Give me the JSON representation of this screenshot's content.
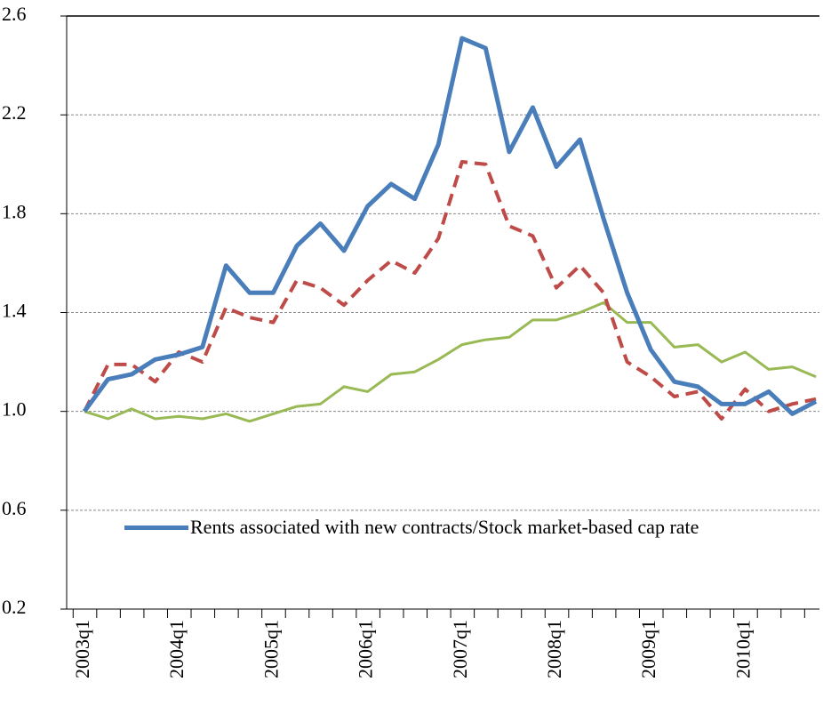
{
  "chart_data": {
    "type": "line",
    "categories": [
      "2003q1",
      null,
      null,
      null,
      "2004q1",
      null,
      null,
      null,
      "2005q1",
      null,
      null,
      null,
      "2006q1",
      null,
      null,
      null,
      "2007q1",
      null,
      null,
      null,
      "2008q1",
      null,
      null,
      null,
      "2009q1",
      null,
      null,
      null,
      "2010q1",
      null,
      null,
      null
    ],
    "series": [
      {
        "name": "Rents associated with new contracts/Stock market-based cap rate",
        "color": "#4a7ebb",
        "dash": false,
        "width": 5,
        "values": [
          1.0,
          1.13,
          1.15,
          1.21,
          1.23,
          1.26,
          1.59,
          1.48,
          1.48,
          1.67,
          1.76,
          1.65,
          1.83,
          1.92,
          1.86,
          2.08,
          2.51,
          2.47,
          2.05,
          2.23,
          1.99,
          2.1,
          1.78,
          1.48,
          1.25,
          1.12,
          1.1,
          1.03,
          1.03,
          1.08,
          0.99,
          1.04
        ]
      },
      {
        "color": "#be4b48",
        "dash": true,
        "width": 4,
        "values": [
          1.0,
          1.19,
          1.19,
          1.12,
          1.24,
          1.2,
          1.42,
          1.38,
          1.36,
          1.53,
          1.5,
          1.43,
          1.53,
          1.61,
          1.56,
          1.7,
          2.01,
          2.0,
          1.75,
          1.71,
          1.5,
          1.59,
          1.48,
          1.2,
          1.14,
          1.06,
          1.08,
          0.97,
          1.09,
          1.0,
          1.03,
          1.05
        ]
      },
      {
        "color": "#98b954",
        "dash": false,
        "width": 3,
        "values": [
          1.0,
          0.97,
          1.01,
          0.97,
          0.98,
          0.97,
          0.99,
          0.96,
          0.99,
          1.02,
          1.03,
          1.1,
          1.08,
          1.15,
          1.16,
          1.21,
          1.27,
          1.29,
          1.3,
          1.37,
          1.37,
          1.4,
          1.44,
          1.36,
          1.36,
          1.26,
          1.27,
          1.2,
          1.24,
          1.17,
          1.18,
          1.14
        ]
      }
    ],
    "ylim": [
      0.2,
      2.6
    ],
    "yticks": [
      0.2,
      0.6,
      {
        "value": 1,
        "label": "1.0"
      },
      1.4,
      1.8,
      2.2,
      2.6
    ],
    "grid": true
  }
}
